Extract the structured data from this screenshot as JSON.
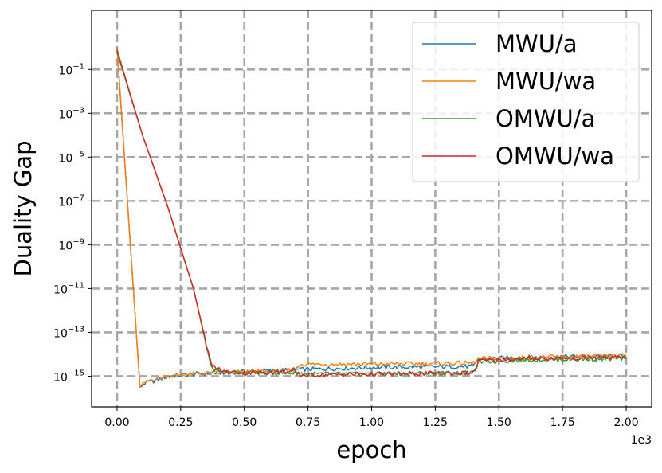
{
  "chart_data": {
    "type": "line",
    "title": "",
    "xlabel": "epoch",
    "ylabel": "Duality Gap",
    "x_offset_label": "1e3",
    "yscale": "log",
    "xlim": [
      -0.1,
      2.1
    ],
    "ylim_log10": [
      -16.4,
      1.7
    ],
    "x_ticks": [
      0.0,
      0.25,
      0.5,
      0.75,
      1.0,
      1.25,
      1.5,
      1.75,
      2.0
    ],
    "x_tick_labels": [
      "0.00",
      "0.25",
      "0.50",
      "0.75",
      "1.00",
      "1.25",
      "1.50",
      "1.75",
      "2.00"
    ],
    "y_ticks_exp": [
      -1,
      -3,
      -5,
      -7,
      -9,
      -11,
      -13,
      -15
    ],
    "y_tick_base": "10",
    "grid": true,
    "legend_position": "upper right",
    "series": [
      {
        "name": "MWU/a",
        "color": "#1f77b4",
        "points": [
          [
            0.0,
            0.0
          ],
          [
            0.09,
            -15.5
          ],
          [
            0.11,
            -15.3
          ],
          [
            0.15,
            -15.2
          ],
          [
            0.2,
            -15.0
          ],
          [
            0.3,
            -14.9
          ],
          [
            0.4,
            -14.85
          ],
          [
            0.5,
            -14.8
          ],
          [
            0.7,
            -14.7
          ],
          [
            1.0,
            -14.6
          ],
          [
            1.4,
            -14.55
          ],
          [
            1.42,
            -14.2
          ],
          [
            1.6,
            -14.15
          ],
          [
            1.8,
            -14.1
          ],
          [
            2.0,
            -14.1
          ]
        ]
      },
      {
        "name": "MWU/wa",
        "color": "#ff7f0e",
        "points": [
          [
            0.0,
            0.0
          ],
          [
            0.09,
            -15.5
          ],
          [
            0.11,
            -15.3
          ],
          [
            0.15,
            -15.1
          ],
          [
            0.2,
            -15.0
          ],
          [
            0.3,
            -14.9
          ],
          [
            0.4,
            -14.85
          ],
          [
            0.5,
            -14.8
          ],
          [
            0.7,
            -14.75
          ],
          [
            0.72,
            -14.45
          ],
          [
            1.0,
            -14.45
          ],
          [
            1.4,
            -14.4
          ],
          [
            1.42,
            -14.2
          ],
          [
            1.6,
            -14.15
          ],
          [
            1.8,
            -14.1
          ],
          [
            2.0,
            -14.05
          ]
        ]
      },
      {
        "name": "OMWU/a",
        "color": "#2ca02c",
        "points": [
          [
            0.0,
            -0.2
          ],
          [
            0.1,
            -4.0
          ],
          [
            0.2,
            -7.3
          ],
          [
            0.3,
            -11.0
          ],
          [
            0.37,
            -14.6
          ],
          [
            0.4,
            -14.8
          ],
          [
            0.5,
            -14.85
          ],
          [
            0.7,
            -14.85
          ],
          [
            0.75,
            -14.9
          ],
          [
            1.0,
            -14.9
          ],
          [
            1.4,
            -14.85
          ],
          [
            1.42,
            -14.35
          ],
          [
            1.6,
            -14.25
          ],
          [
            2.0,
            -14.2
          ]
        ]
      },
      {
        "name": "OMWU/wa",
        "color": "#d62728",
        "points": [
          [
            0.0,
            -0.1
          ],
          [
            0.1,
            -4.0
          ],
          [
            0.2,
            -7.3
          ],
          [
            0.3,
            -11.0
          ],
          [
            0.37,
            -14.5
          ],
          [
            0.42,
            -14.8
          ],
          [
            0.5,
            -14.85
          ],
          [
            0.7,
            -14.8
          ],
          [
            0.72,
            -14.95
          ],
          [
            1.0,
            -14.9
          ],
          [
            1.4,
            -14.85
          ],
          [
            1.42,
            -14.3
          ],
          [
            1.6,
            -14.2
          ],
          [
            2.0,
            -14.15
          ]
        ]
      }
    ]
  }
}
